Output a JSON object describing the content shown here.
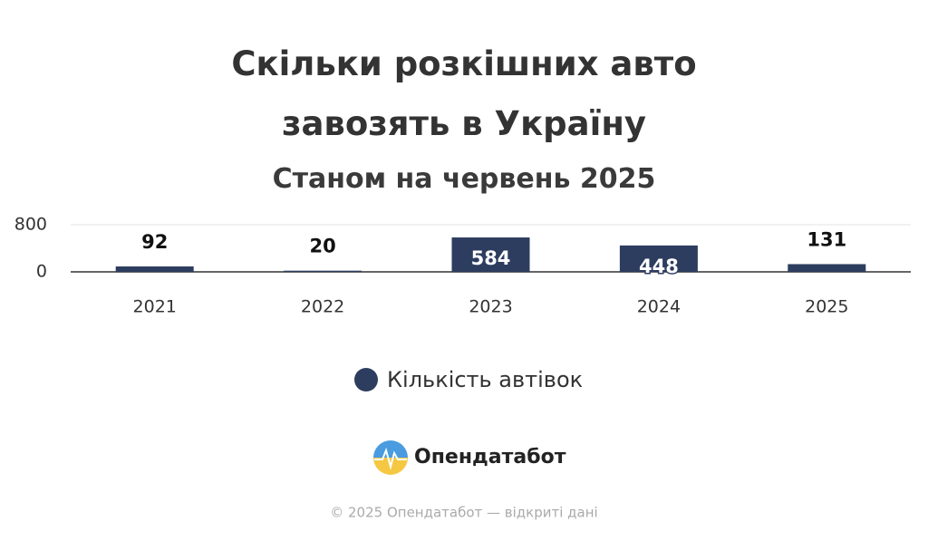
{
  "chart_data": {
    "type": "bar",
    "title": "Скільки розкішних авто завозять в Україну",
    "subtitle": "Станом на червень 2025",
    "categories": [
      "2021",
      "2022",
      "2023",
      "2024",
      "2025"
    ],
    "series": [
      {
        "name": "Кількість автівок",
        "color": "#2d3d5f",
        "values": [
          92,
          20,
          584,
          448,
          131
        ]
      }
    ],
    "ylim": [
      0,
      800
    ],
    "yticks": [
      0,
      800
    ],
    "grid": true
  },
  "branding": "Опендатабот",
  "footer": "© 2025 Опендатабот — відкриті дані"
}
